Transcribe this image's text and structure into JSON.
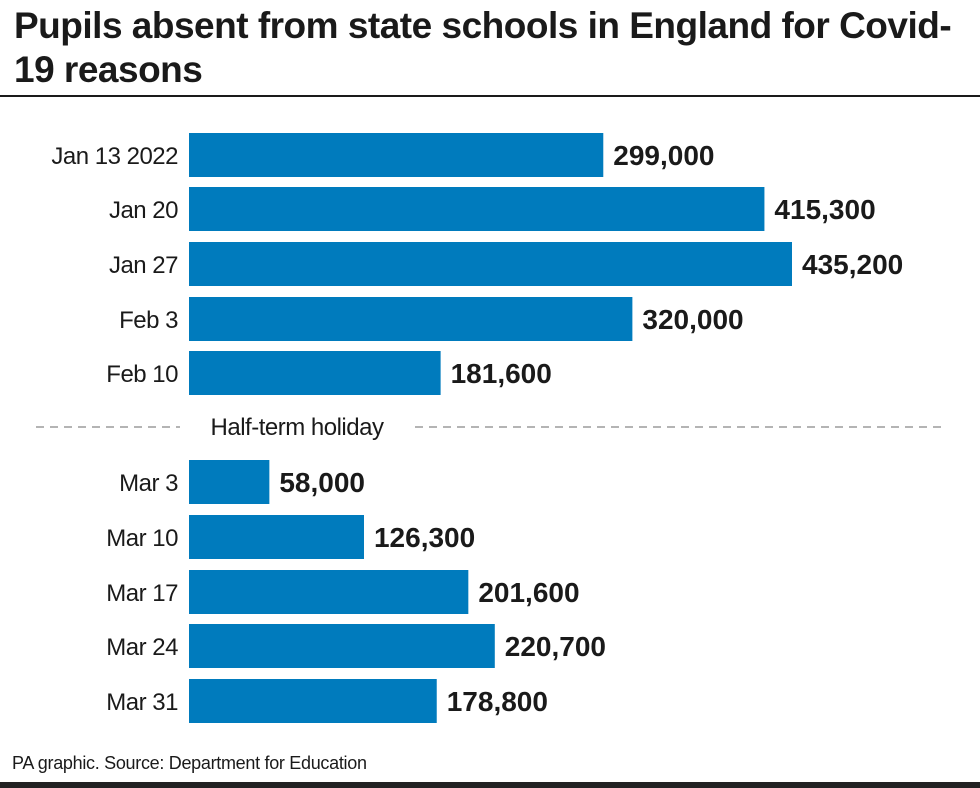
{
  "chart_data": {
    "type": "bar",
    "orientation": "horizontal",
    "title": "Pupils absent from state schools in England for Covid-19 reasons",
    "categories": [
      "Jan 13 2022",
      "Jan 20",
      "Jan 27",
      "Feb 3",
      "Feb 10",
      "Mar 3",
      "Mar 10",
      "Mar 17",
      "Mar 24",
      "Mar 31"
    ],
    "values": [
      299000,
      415300,
      435200,
      320000,
      181600,
      58000,
      126300,
      201600,
      220700,
      178800
    ],
    "data_labels": [
      "299,000",
      "415,300",
      "435,200",
      "320,000",
      "181,600",
      "58,000",
      "126,300",
      "201,600",
      "220,700",
      "178,800"
    ],
    "annotation": "Half-term holiday",
    "bar_color": "#007bbd",
    "grid": false
  },
  "source": "PA graphic. Source: Department for Education"
}
